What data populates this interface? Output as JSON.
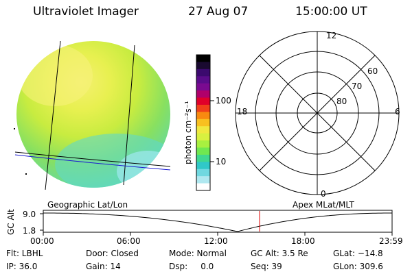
{
  "header": {
    "instrument": "Ultraviolet Imager",
    "date": "27 Aug 07",
    "time": "15:00:00 UT"
  },
  "colorbar": {
    "unit_label": "photon cm⁻²s⁻¹",
    "ticks": [
      "100",
      "10"
    ],
    "colors": [
      "#000000",
      "#1a0a30",
      "#3b0a6e",
      "#5a0c8a",
      "#7a0a90",
      "#b0006a",
      "#e0002a",
      "#f0401a",
      "#f88a10",
      "#f8c020",
      "#f0e840",
      "#d8f040",
      "#a8f040",
      "#70e850",
      "#40d890",
      "#30c8c8",
      "#70d8e0",
      "#b0e8f0",
      "#ffffff"
    ]
  },
  "polar": {
    "labels": [
      "12",
      "18",
      "6",
      "0",
      "60",
      "70",
      "80"
    ]
  },
  "track": {
    "left_label": "Geographic Lat/Lon",
    "right_label": "Apex MLat/MLT",
    "y_axis_label": "GC Alt",
    "y_ticks": [
      "9.0",
      "1.8"
    ],
    "x_ticks": [
      "00:00",
      "06:00",
      "12:00",
      "18:00",
      "23:59"
    ],
    "marker_color": "#e00000"
  },
  "footer": {
    "row1": [
      "Flt: LBHL",
      "Door: Closed",
      "Mode: Normal",
      "GC Alt: 3.5 Re",
      "GLat: −14.8"
    ],
    "row2": [
      "IP: 36.0",
      "Gain: 14",
      "Dsp:     0.0",
      "Seq: 39",
      "GLon: 309.6"
    ]
  }
}
